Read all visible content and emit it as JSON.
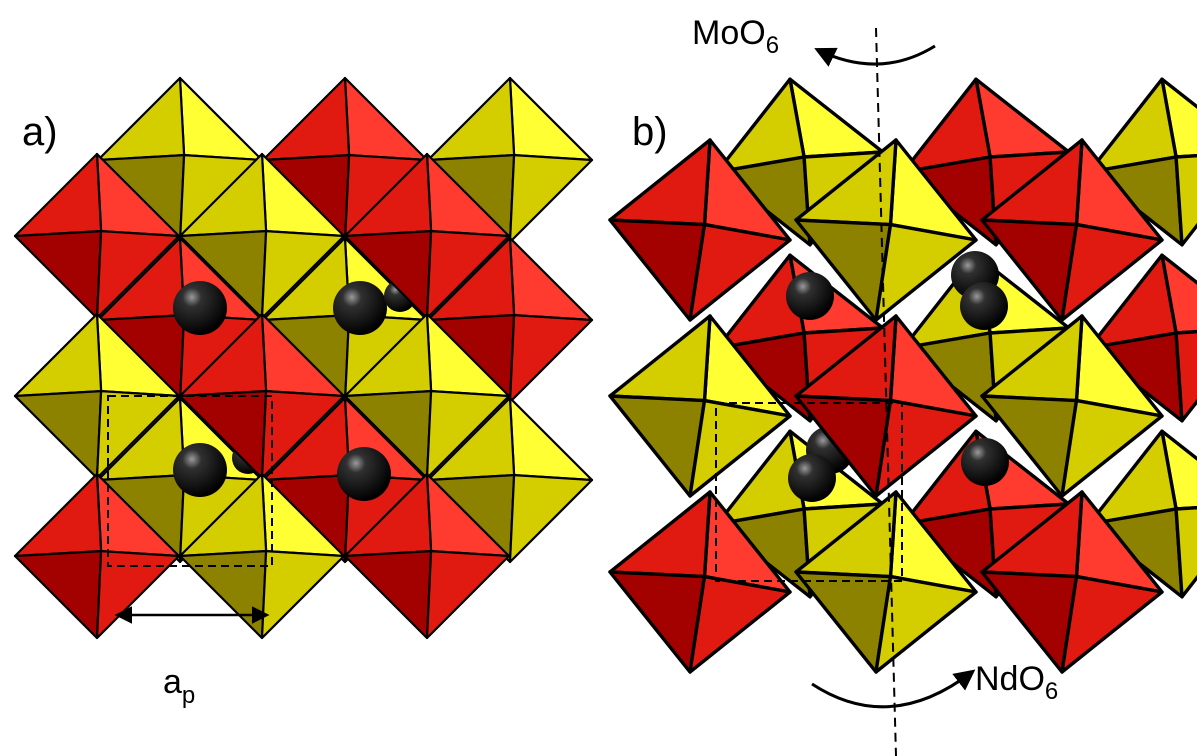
{
  "panel_a": {
    "label": "a)",
    "lattice_label_main": "a",
    "lattice_label_sub": "p"
  },
  "panel_b": {
    "label": "b)",
    "top_label_main": "MoO",
    "top_label_sub": "6",
    "bottom_label_main": "NdO",
    "bottom_label_sub": "6"
  },
  "colors": {
    "mo_octahedron_face_light": "#ffff33",
    "mo_octahedron_face_mid": "#d4cd00",
    "mo_octahedron_face_dark": "#8c8200",
    "nd_octahedron_face_light": "#ff3b30",
    "nd_octahedron_face_mid": "#e01a10",
    "nd_octahedron_face_dark": "#a30000",
    "a_site_ion": "#000000",
    "outline": "#000000"
  }
}
